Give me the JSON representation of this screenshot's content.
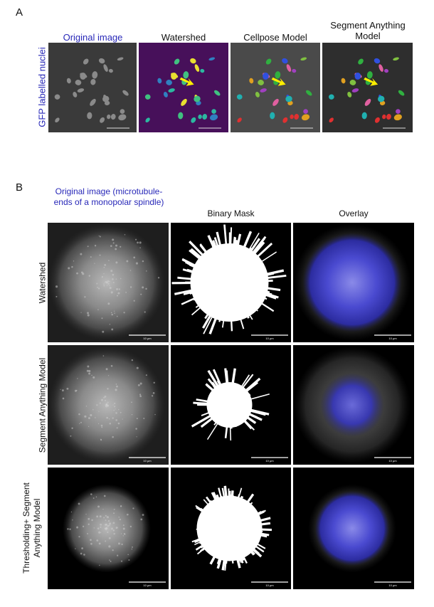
{
  "panel_a": {
    "label": "A",
    "row_label": "GFP labelled nuclei",
    "columns": [
      "Original image",
      "Watershed",
      "Cellpose Model",
      "Segment Anything Model"
    ]
  },
  "panel_b": {
    "label": "B",
    "columns": [
      "Original image (microtubule-ends of a monopolar spindle)",
      "Binary Mask",
      "Overlay"
    ],
    "rows": [
      "Watershed",
      "Segment Anything Model",
      "Thresholding+ Segment Anything Model"
    ],
    "scale_bar": "10 μm"
  }
}
